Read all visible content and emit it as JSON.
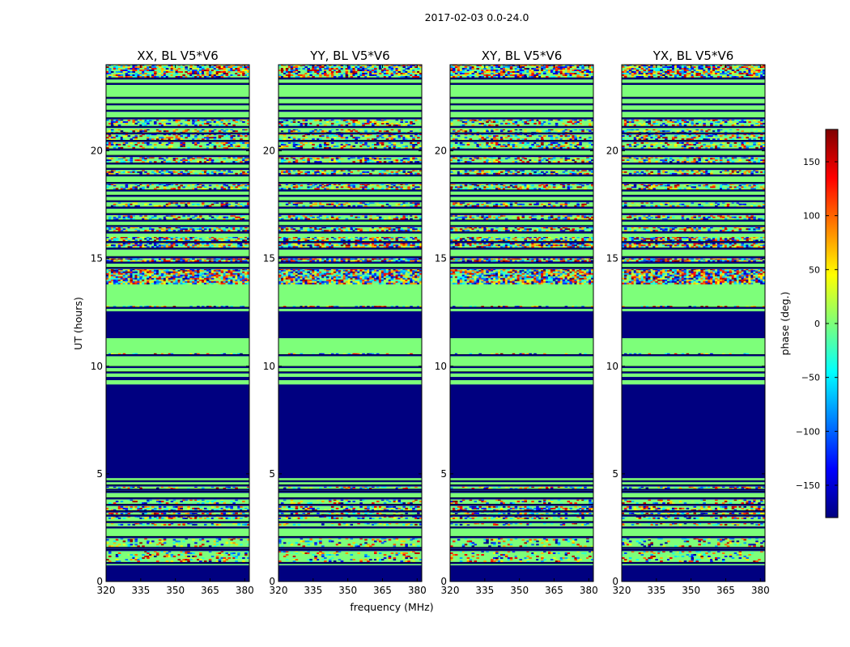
{
  "chart_data": {
    "type": "heatmap",
    "suptitle": "2017-02-03 0.0-24.0",
    "xlabel": "frequency (MHz)",
    "ylabel": "UT (hours)",
    "xlim": [
      320,
      382
    ],
    "ylim": [
      0,
      24
    ],
    "xticks": [
      320,
      335,
      350,
      365,
      380
    ],
    "yticks": [
      0,
      5,
      10,
      15,
      20
    ],
    "colorbar": {
      "label": "phase (deg.)",
      "range": [
        -180,
        180
      ],
      "ticks": [
        -150,
        -100,
        -50,
        0,
        50,
        100,
        150
      ],
      "colormap": "jet",
      "stops": [
        "#00007f",
        "#0000ff",
        "#0080ff",
        "#00ffff",
        "#7dff7a",
        "#ffff00",
        "#ff8000",
        "#ff0000",
        "#7f0000"
      ]
    },
    "background_value_deg": 0,
    "masked_color": "#000080",
    "panels": [
      {
        "title": "XX, BL V5*V6",
        "variant": "xx"
      },
      {
        "title": "YY, BL V5*V6",
        "variant": "yy"
      },
      {
        "title": "XY, BL V5*V6",
        "variant": "xy"
      },
      {
        "title": "YX, BL V5*V6",
        "variant": "yx"
      }
    ],
    "flagged_ranges_hours": [
      [
        0.0,
        0.75
      ],
      [
        4.8,
        9.15
      ],
      [
        9.35,
        9.5
      ],
      [
        11.3,
        12.55
      ]
    ],
    "gap_lines_hours": [
      0.85,
      1.45,
      1.55,
      2.05,
      2.5,
      2.75,
      3.05,
      3.25,
      3.55,
      3.85,
      4.15,
      4.25,
      4.45,
      4.65,
      9.7,
      9.95,
      10.5,
      12.7,
      14.55,
      14.8,
      15.05,
      15.45,
      15.75,
      16.2,
      16.5,
      16.75,
      17.05,
      17.35,
      17.65,
      17.9,
      18.15,
      18.5,
      18.85,
      19.15,
      19.4,
      19.75,
      20.05,
      20.45,
      20.8,
      21.1,
      21.5,
      21.85,
      22.15,
      22.45,
      23.1,
      23.35
    ],
    "noisy_bands_hours": [
      [
        0.9,
        1.4,
        0.3
      ],
      [
        1.6,
        2.0,
        0.25
      ],
      [
        2.6,
        2.7,
        0.3
      ],
      [
        2.9,
        3.5,
        0.55
      ],
      [
        3.6,
        3.8,
        0.3
      ],
      [
        4.3,
        4.4,
        0.35
      ],
      [
        10.55,
        10.6,
        0.35
      ],
      [
        12.75,
        12.8,
        0.5
      ],
      [
        13.8,
        14.5,
        0.9
      ],
      [
        14.85,
        15.0,
        0.85
      ],
      [
        15.5,
        16.0,
        0.7
      ],
      [
        16.25,
        16.45,
        0.6
      ],
      [
        16.8,
        17.0,
        0.5
      ],
      [
        17.4,
        17.6,
        0.45
      ],
      [
        18.2,
        18.45,
        0.5
      ],
      [
        18.9,
        19.1,
        0.55
      ],
      [
        19.45,
        19.7,
        0.5
      ],
      [
        20.1,
        20.4,
        0.45
      ],
      [
        20.5,
        21.0,
        0.5
      ],
      [
        21.15,
        21.45,
        0.45
      ],
      [
        23.4,
        24.0,
        0.75
      ]
    ]
  }
}
